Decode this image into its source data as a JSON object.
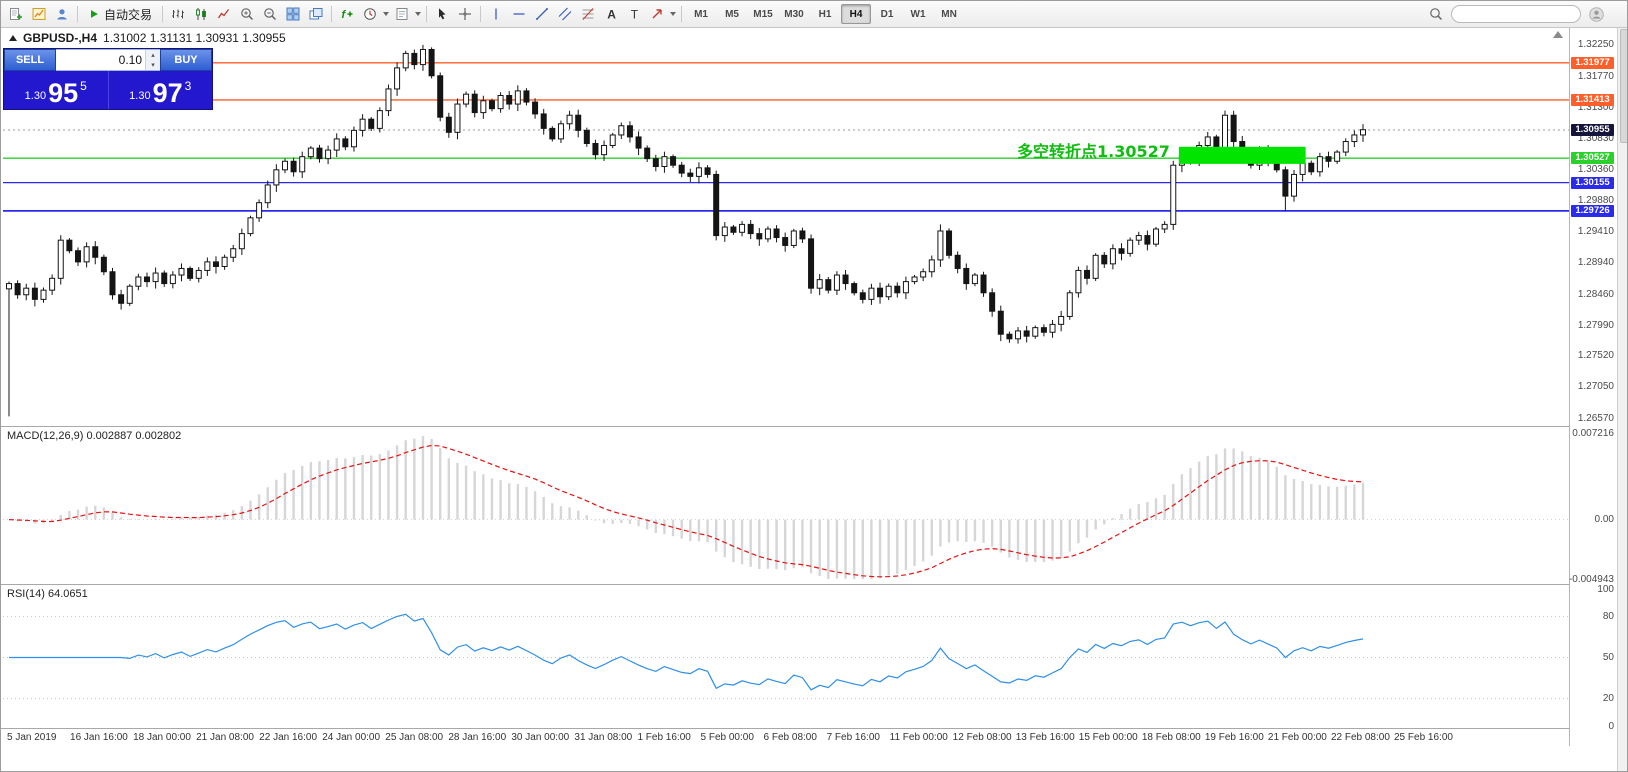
{
  "toolbar": {
    "auto_trading_label": "自动交易",
    "timeframes": [
      "M1",
      "M5",
      "M15",
      "M30",
      "H1",
      "H4",
      "D1",
      "W1",
      "MN"
    ],
    "active_timeframe": "H4",
    "search_placeholder": ""
  },
  "chart": {
    "symbol_period": "GBPUSD-,H4",
    "quotes": "1.31002 1.31131 1.30931 1.30955",
    "annotation": {
      "text": "多空转折点1.30527",
      "color": "#12bd12"
    },
    "price_axis": {
      "max": 1.324,
      "min": 1.265,
      "ticks": [
        "1.32250",
        "1.31770",
        "1.31300",
        "1.30830",
        "1.30360",
        "1.29880",
        "1.29410",
        "1.28940",
        "1.28460",
        "1.27990",
        "1.27520",
        "1.27050",
        "1.26570"
      ]
    },
    "hlines": [
      {
        "label": "1.31977",
        "price": 1.31977,
        "color": "#ff5f2a",
        "width": 1.4
      },
      {
        "label": "1.31413",
        "price": 1.31413,
        "color": "#ff5f2a",
        "width": 1.4
      },
      {
        "label": "1.30527",
        "price": 1.30527,
        "color": "#2ad12a",
        "width": 1.3
      },
      {
        "label": "1.30155",
        "price": 1.30155,
        "color": "#2b2bee",
        "width": 1.3
      },
      {
        "label": "1.29726",
        "price": 1.29726,
        "color": "#2b2bee",
        "width": 1.8
      }
    ],
    "current_price": {
      "label": "1.30955",
      "price": 1.30955,
      "color": "#14143c"
    },
    "highlight_box": {
      "start_index": 136,
      "end_index": 150,
      "price_top": 1.307,
      "price_bottom": 1.3044,
      "color": "#00e400"
    }
  },
  "trade_panel": {
    "sell_label": "SELL",
    "buy_label": "BUY",
    "lot": "0.10",
    "sell_price_prefix": "1.30",
    "sell_price_big": "95",
    "sell_price_sup": "5",
    "buy_price_prefix": "1.30",
    "buy_price_big": "97",
    "buy_price_sup": "3"
  },
  "macd_panel": {
    "label": "MACD(12,26,9) 0.002887 0.002802",
    "axis": [
      "0.007216",
      "0.00",
      "-0.004943"
    ]
  },
  "rsi_panel": {
    "label": "RSI(14) 64.0651",
    "axis": [
      "100",
      "80",
      "50",
      "20",
      "0"
    ]
  },
  "time_axis": [
    "5 Jan 2019",
    "16 Jan 16:00",
    "18 Jan 00:00",
    "21 Jan 08:00",
    "22 Jan 16:00",
    "24 Jan 00:00",
    "25 Jan 08:00",
    "28 Jan 16:00",
    "30 Jan 00:00",
    "31 Jan 08:00",
    "1 Feb 16:00",
    "5 Feb 00:00",
    "6 Feb 08:00",
    "7 Feb 16:00",
    "11 Feb 00:00",
    "12 Feb 08:00",
    "13 Feb 16:00",
    "15 Feb 00:00",
    "18 Feb 08:00",
    "19 Feb 16:00",
    "21 Feb 00:00",
    "22 Feb 08:00",
    "25 Feb 16:00"
  ],
  "chart_data": {
    "type": "candlestick",
    "symbol": "GBPUSD-",
    "period": "H4",
    "closes": [
      1.2862,
      1.2845,
      1.2855,
      1.2838,
      1.2852,
      1.287,
      1.2928,
      1.2912,
      1.2895,
      1.2918,
      1.2902,
      1.288,
      1.2845,
      1.2832,
      1.2858,
      1.2872,
      1.2865,
      1.2878,
      1.2862,
      1.2875,
      1.2885,
      1.287,
      1.2882,
      1.2895,
      1.2888,
      1.2902,
      1.2915,
      1.2938,
      1.2962,
      1.2985,
      1.3012,
      1.3035,
      1.3048,
      1.3032,
      1.3055,
      1.3068,
      1.3052,
      1.3065,
      1.3082,
      1.307,
      1.3095,
      1.3112,
      1.3098,
      1.3125,
      1.3158,
      1.319,
      1.3212,
      1.3195,
      1.3218,
      1.3178,
      1.3115,
      1.3092,
      1.3135,
      1.315,
      1.3122,
      1.314,
      1.3128,
      1.3148,
      1.3135,
      1.3155,
      1.3138,
      1.312,
      1.3098,
      1.3082,
      1.3105,
      1.3118,
      1.3095,
      1.3075,
      1.3058,
      1.3072,
      1.3088,
      1.3102,
      1.3085,
      1.3068,
      1.3052,
      1.304,
      1.3055,
      1.3042,
      1.303,
      1.3025,
      1.3038,
      1.3028,
      1.2935,
      1.2948,
      1.294,
      1.2952,
      1.2938,
      1.293,
      1.2945,
      1.2932,
      1.292,
      1.2942,
      1.293,
      1.2855,
      1.2868,
      1.2852,
      1.2875,
      1.2862,
      1.2848,
      1.2838,
      1.2855,
      1.2842,
      1.2858,
      1.2848,
      1.2865,
      1.2872,
      1.288,
      1.2898,
      1.2942,
      1.2905,
      1.2885,
      1.2862,
      1.2875,
      1.2848,
      1.282,
      1.2785,
      1.2778,
      1.279,
      1.2782,
      1.2795,
      1.2788,
      1.28,
      1.2812,
      1.2848,
      1.2882,
      1.287,
      1.2905,
      1.2892,
      1.2915,
      1.2908,
      1.2928,
      1.2935,
      1.2922,
      1.2945,
      1.2952,
      1.3042,
      1.3058,
      1.3048,
      1.3072,
      1.3085,
      1.3065,
      1.3118,
      1.3078,
      1.3058,
      1.3042,
      1.3065,
      1.305,
      1.3035,
      1.2995,
      1.3028,
      1.3045,
      1.3032,
      1.3055,
      1.3048,
      1.3062,
      1.3078,
      1.3088,
      1.3096
    ],
    "wick_overrides": {
      "0": {
        "low": 1.266
      },
      "48": {
        "high": 1.3225
      },
      "108": {
        "high": 1.2952
      },
      "116": {
        "low": 1.2772
      },
      "141": {
        "high": 1.3125
      },
      "148": {
        "low": 1.2972
      }
    },
    "up_color": "#ffffff",
    "down_color": "#151515",
    "candle_border": "#151515",
    "macd": {
      "fast": 12,
      "slow": 26,
      "signal": 9,
      "hist_color": "#d6d6d6",
      "signal_color": "#e81212",
      "current": 0.002887,
      "signal_current": 0.002802
    },
    "rsi": {
      "period": 14,
      "color": "#2f8fe8",
      "current": 64.0651,
      "levels": [
        80,
        50,
        20
      ]
    }
  }
}
